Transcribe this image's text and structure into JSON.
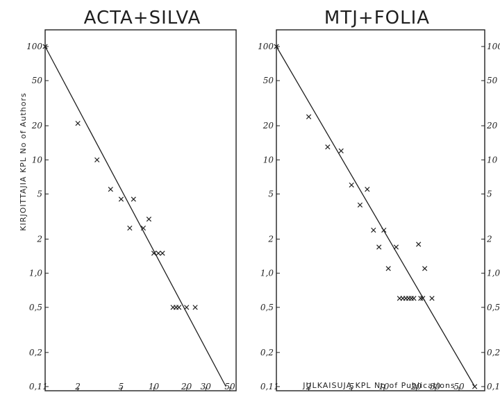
{
  "chart_data": [
    {
      "type": "scatter",
      "title": "ACTA+SILVA",
      "xlabel": "",
      "ylabel": "KIRJOITTAJIA KPL  No of Authors",
      "x_scale": "log",
      "y_scale": "log",
      "xlim": [
        1,
        60
      ],
      "ylim": [
        0.1,
        120
      ],
      "x_ticks": [
        1,
        2,
        5,
        10,
        20,
        30,
        50
      ],
      "x_tick_labels": [
        "1",
        "2",
        "5",
        "10",
        "20",
        "30",
        "50"
      ],
      "y_ticks": [
        100,
        50,
        20,
        10,
        5,
        2,
        1.0,
        0.5,
        0.2,
        0.1
      ],
      "y_tick_labels": [
        "100",
        "50",
        "20",
        "10",
        "5",
        "2",
        "1,0",
        "0,5",
        "0,2",
        "0,1"
      ],
      "fit_line": {
        "from": [
          1,
          100
        ],
        "to": [
          46,
          0.1
        ]
      },
      "points": [
        {
          "x": 1,
          "y": 100
        },
        {
          "x": 2,
          "y": 21
        },
        {
          "x": 3,
          "y": 10
        },
        {
          "x": 4,
          "y": 5.5
        },
        {
          "x": 5,
          "y": 4.5
        },
        {
          "x": 6,
          "y": 2.5
        },
        {
          "x": 6.5,
          "y": 4.5
        },
        {
          "x": 8,
          "y": 2.5
        },
        {
          "x": 9,
          "y": 3
        },
        {
          "x": 10,
          "y": 1.5
        },
        {
          "x": 11,
          "y": 1.5
        },
        {
          "x": 12,
          "y": 1.5
        },
        {
          "x": 15,
          "y": 0.5
        },
        {
          "x": 16,
          "y": 0.5
        },
        {
          "x": 17,
          "y": 0.5
        },
        {
          "x": 20,
          "y": 0.5
        },
        {
          "x": 24,
          "y": 0.5
        }
      ]
    },
    {
      "type": "scatter",
      "title": "MTJ+FOLIA",
      "xlabel": "JULKAISUJA KPL    No of Publications",
      "ylabel": "",
      "x_scale": "log",
      "y_scale": "log",
      "xlim": [
        1,
        80
      ],
      "ylim": [
        0.1,
        120
      ],
      "x_ticks": [
        1,
        2,
        5,
        10,
        20,
        30,
        50
      ],
      "x_tick_labels": [
        "1",
        "2",
        "5",
        "10",
        "20",
        "30",
        "50"
      ],
      "y_ticks": [
        100,
        50,
        20,
        10,
        5,
        2,
        1.0,
        0.5,
        0.2,
        0.1
      ],
      "y_tick_labels": [
        "100",
        "50",
        "20",
        "10",
        "5",
        "2",
        "1,0",
        "0,5",
        "0,2",
        "0,1"
      ],
      "y_tick_labels_right": [
        "100",
        "50",
        "20",
        "10",
        "5",
        "2",
        "1,0",
        "0,5",
        "0,2",
        "0,1"
      ],
      "fit_line": {
        "from": [
          1,
          100
        ],
        "to": [
          70,
          0.1
        ]
      },
      "points": [
        {
          "x": 1,
          "y": 100
        },
        {
          "x": 2,
          "y": 24
        },
        {
          "x": 3,
          "y": 13
        },
        {
          "x": 4,
          "y": 12
        },
        {
          "x": 5,
          "y": 6
        },
        {
          "x": 6,
          "y": 4
        },
        {
          "x": 7,
          "y": 5.5
        },
        {
          "x": 8,
          "y": 2.4
        },
        {
          "x": 9,
          "y": 1.7
        },
        {
          "x": 10,
          "y": 2.4
        },
        {
          "x": 11,
          "y": 1.1
        },
        {
          "x": 13,
          "y": 1.7
        },
        {
          "x": 14,
          "y": 0.6
        },
        {
          "x": 15,
          "y": 0.6
        },
        {
          "x": 16,
          "y": 0.6
        },
        {
          "x": 17,
          "y": 0.6
        },
        {
          "x": 18,
          "y": 0.6
        },
        {
          "x": 19,
          "y": 0.6
        },
        {
          "x": 21,
          "y": 1.8
        },
        {
          "x": 22,
          "y": 0.6
        },
        {
          "x": 23,
          "y": 0.6
        },
        {
          "x": 24,
          "y": 1.1
        },
        {
          "x": 28,
          "y": 0.6
        },
        {
          "x": 70,
          "y": 0.1
        }
      ]
    }
  ]
}
